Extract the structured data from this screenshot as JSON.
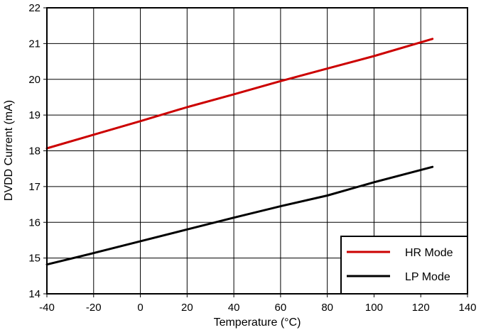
{
  "chart_data": {
    "type": "line",
    "title": "",
    "xlabel": "Temperature (°C)",
    "ylabel": "DVDD Current (mA)",
    "xlim": [
      -40,
      140
    ],
    "ylim": [
      14,
      22
    ],
    "xticks": [
      -40,
      -20,
      0,
      20,
      40,
      60,
      80,
      100,
      120,
      140
    ],
    "yticks": [
      14,
      15,
      16,
      17,
      18,
      19,
      20,
      21,
      22
    ],
    "grid": true,
    "legend_position": "bottom-right",
    "series": [
      {
        "name": "HR Mode",
        "color": "#cc0000",
        "x": [
          -40,
          -20,
          0,
          20,
          40,
          60,
          80,
          100,
          125
        ],
        "y": [
          18.07,
          18.45,
          18.83,
          19.22,
          19.58,
          19.95,
          20.3,
          20.65,
          21.13
        ]
      },
      {
        "name": "LP Mode",
        "color": "#000000",
        "x": [
          -40,
          -20,
          0,
          20,
          40,
          60,
          80,
          100,
          125
        ],
        "y": [
          14.82,
          15.14,
          15.47,
          15.8,
          16.13,
          16.45,
          16.75,
          17.12,
          17.55
        ]
      }
    ]
  }
}
